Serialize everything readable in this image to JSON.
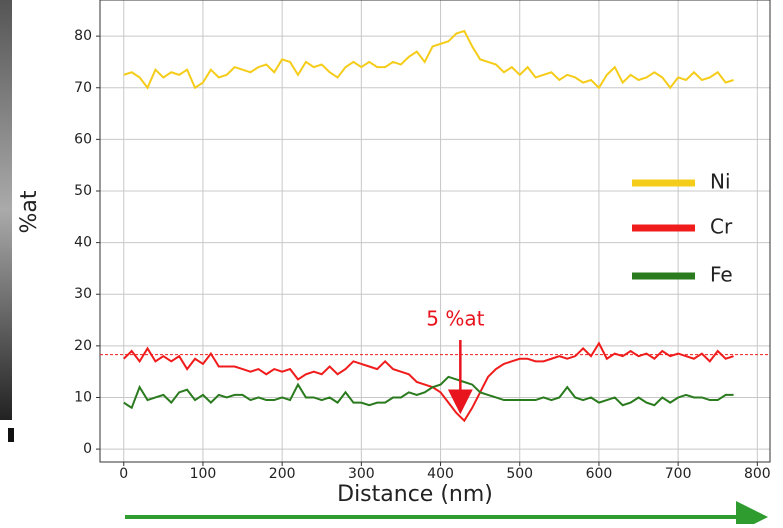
{
  "chart_data": {
    "type": "line",
    "xlabel": "Distance (nm)",
    "ylabel": "%at",
    "x": [
      0,
      10,
      20,
      30,
      40,
      50,
      60,
      70,
      80,
      90,
      100,
      110,
      120,
      130,
      140,
      150,
      160,
      170,
      180,
      190,
      200,
      210,
      220,
      230,
      240,
      250,
      260,
      270,
      280,
      290,
      300,
      310,
      320,
      330,
      340,
      350,
      360,
      370,
      380,
      390,
      400,
      410,
      420,
      430,
      440,
      450,
      460,
      470,
      480,
      490,
      500,
      510,
      520,
      530,
      540,
      550,
      560,
      570,
      580,
      590,
      600,
      610,
      620,
      630,
      640,
      650,
      660,
      670,
      680,
      690,
      700,
      710,
      720,
      730,
      740,
      750,
      760,
      770
    ],
    "series": [
      {
        "name": "Ni",
        "color": "#f5cc1a",
        "values": [
          72.5,
          73,
          72,
          70,
          73.5,
          72,
          73,
          72.5,
          73.5,
          70,
          71,
          73.5,
          72,
          72.5,
          74,
          73.5,
          73,
          74,
          74.5,
          73,
          75.5,
          75,
          72.5,
          75,
          74,
          74.5,
          73,
          72,
          74,
          75,
          74,
          75,
          74,
          74,
          75,
          74.5,
          76,
          77,
          75,
          78,
          78.5,
          79,
          80.5,
          81,
          78,
          75.5,
          75,
          74.5,
          73,
          74,
          72.5,
          74,
          72,
          72.5,
          73,
          71.5,
          72.5,
          72,
          71,
          71.5,
          70,
          72.5,
          74,
          71,
          72.5,
          71.5,
          72,
          73,
          72,
          70,
          72,
          71.5,
          73,
          71.5,
          72,
          73,
          71,
          71.5
        ]
      },
      {
        "name": "Cr",
        "color": "#f01c1c",
        "values": [
          17.5,
          19,
          17,
          19.5,
          17,
          18,
          17,
          18,
          15.5,
          17.5,
          16.5,
          18.5,
          16,
          16,
          16,
          15.5,
          15,
          15.5,
          14.5,
          15.5,
          15,
          15.5,
          13.5,
          14.5,
          15,
          14.5,
          16,
          14.5,
          15.5,
          17,
          16.5,
          16,
          15.5,
          17,
          15.5,
          15,
          14.5,
          13,
          12.5,
          12,
          11,
          9,
          7,
          5.5,
          8,
          11,
          14,
          15.5,
          16.5,
          17,
          17.5,
          17.5,
          17,
          17,
          17.5,
          18,
          17.5,
          18,
          19.5,
          18,
          20.5,
          17.5,
          18.5,
          18,
          19,
          18,
          18.5,
          17.5,
          19,
          18,
          18.5,
          18,
          17.5,
          18.5,
          17,
          19,
          17.5,
          18
        ]
      },
      {
        "name": "Fe",
        "color": "#2a7a1e",
        "values": [
          9,
          8,
          12,
          9.5,
          10,
          10.5,
          9,
          11,
          11.5,
          9.5,
          10.5,
          9,
          10.5,
          10,
          10.5,
          10.5,
          9.5,
          10,
          9.5,
          9.5,
          10,
          9.5,
          12.5,
          10,
          10,
          9.5,
          10,
          9,
          11,
          9,
          9,
          8.5,
          9,
          9,
          10,
          10,
          11,
          10.5,
          11,
          12,
          12.5,
          14,
          13.5,
          13,
          12.5,
          11,
          10.5,
          10,
          9.5,
          9.5,
          9.5,
          9.5,
          9.5,
          10,
          9.5,
          10,
          12,
          10,
          9.5,
          10,
          9,
          9.5,
          10,
          8.5,
          9,
          10,
          9,
          8.5,
          10,
          9,
          10,
          10.5,
          10,
          10,
          9.5,
          9.5,
          10.5,
          10.5
        ]
      }
    ],
    "hline": {
      "value": 18.3,
      "color": "#f01c1c"
    },
    "annotation": {
      "text": "5 %at",
      "x": 425,
      "y": 8,
      "color": "#e8141e"
    },
    "xlim": [
      -30,
      816
    ],
    "ylim": [
      -2.5,
      87
    ],
    "xticks": [
      0,
      100,
      200,
      300,
      400,
      500,
      600,
      700,
      800
    ],
    "yticks": [
      0,
      10,
      20,
      30,
      40,
      50,
      60,
      70,
      80
    ],
    "grid": true,
    "legend": "right"
  }
}
